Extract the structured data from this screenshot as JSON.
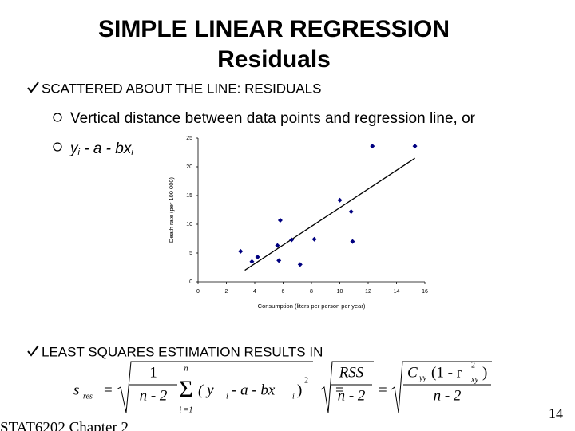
{
  "header": {
    "title_lines": [
      "SIMPLE LINEAR REGRESSION",
      "Residuals"
    ]
  },
  "bullets": [
    "SCATTERED ABOUT THE LINE: RESIDUALS",
    "LEAST SQUARES ESTIMATION RESULTS IN"
  ],
  "sub_bullets": {
    "text": "Vertical distance between data points and regression line, or",
    "expression": [
      "y",
      "i",
      " - a - bx",
      "i"
    ]
  },
  "formula": [
    "s",
    "res",
    "=",
    "1",
    "n - 2",
    "n",
    "Σ",
    "i =1",
    "( y",
    "i",
    " - a - bx",
    "i",
    ")",
    "2",
    "=",
    "RSS",
    "n - 2",
    "=",
    "C",
    "yy",
    "(1 - r",
    "2",
    "xy",
    ")",
    "n - 2"
  ],
  "footer": {
    "course": "STAT6202 Chapter 2",
    "page": "14"
  },
  "chart_data": {
    "type": "scatter",
    "x_label": "Consumption (liters per person per year)",
    "y_label": "Death rate (per 100 000)",
    "color": "#000080",
    "x": [
      3,
      3.8,
      4.2,
      5.6,
      5.7,
      5.8,
      6.6,
      7.2,
      8.2,
      10,
      10.8,
      10.9,
      12.3,
      15.3
    ],
    "y": [
      5.3,
      3.5,
      4.3,
      6.3,
      3.7,
      10.7,
      7.3,
      3.0,
      7.4,
      14.2,
      12.2,
      7.0,
      23.6,
      23.6
    ],
    "trendline": {
      "x": [
        3.3,
        15.3
      ],
      "y": [
        2,
        21.5
      ]
    },
    "xlim": [
      0,
      16
    ],
    "xticks": [
      0,
      2,
      4,
      6,
      8,
      10,
      12,
      14,
      16
    ],
    "ylim": [
      0,
      25
    ],
    "yticks": [
      0,
      5,
      10,
      15,
      20,
      25
    ]
  }
}
